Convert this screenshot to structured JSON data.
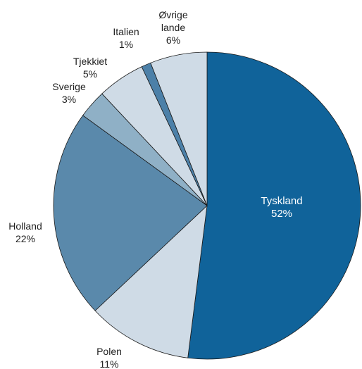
{
  "chart_data": {
    "type": "pie",
    "start_angle_deg": 0,
    "direction": "clockwise",
    "slices": [
      {
        "label": "Tyskland",
        "pct_label": "52%",
        "value": 52,
        "color": "#10639a",
        "label_inside": true
      },
      {
        "label": "Polen",
        "pct_label": "11%",
        "value": 11,
        "color": "#cfdbe6",
        "label_inside": false
      },
      {
        "label": "Holland",
        "pct_label": "22%",
        "value": 22,
        "color": "#5a89ab",
        "label_inside": false
      },
      {
        "label": "Sverige",
        "pct_label": "3%",
        "value": 3,
        "color": "#8fb0c6",
        "label_inside": false
      },
      {
        "label": "Tjekkiet",
        "pct_label": "5%",
        "value": 5,
        "color": "#cfdbe6",
        "label_inside": false
      },
      {
        "label": "Italien",
        "pct_label": "1%",
        "value": 1,
        "color": "#4c80a8",
        "label_inside": false
      },
      {
        "label": "Øvrige lande",
        "label_lines": [
          "Øvrige",
          "lande"
        ],
        "pct_label": "6%",
        "value": 6,
        "color": "#cfdbe6",
        "label_inside": false
      }
    ]
  }
}
